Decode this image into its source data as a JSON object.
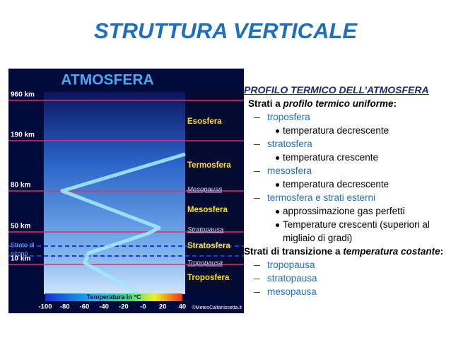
{
  "title": "STRUTTURA VERTICALE",
  "figure": {
    "title": "ATMOSFERA",
    "altitudes": [
      "960 km",
      "190 km",
      "80 km",
      "50 km",
      "10 km"
    ],
    "layers": [
      "Esosfera",
      "Termosfera",
      "Mesosfera",
      "Stratosfera",
      "Troposfera"
    ],
    "pauses": [
      "Mesopausa",
      "Stratopausa",
      "Tropopausa"
    ],
    "ozone": [
      "Strato di",
      "ozono"
    ],
    "scale_title": "Temperatura in °C",
    "scale_ticks": [
      "-100",
      "-80",
      "-60",
      "-40",
      "-20",
      "-0",
      "20",
      "40"
    ],
    "credit": "©MeteoCaltanissetta.it"
  },
  "text": {
    "heading": "PROFILO TERMICO DELL’ATMOSFERA",
    "uniform": [
      "Strati a ",
      "profilo termico uniforme",
      ":"
    ],
    "uniform_items": [
      {
        "name": "troposfera",
        "detail": [
          "temperatura decrescente"
        ]
      },
      {
        "name": "stratosfera",
        "detail": [
          "temperatura crescente"
        ]
      },
      {
        "name": "mesosfera",
        "detail": [
          "temperatura decrescente"
        ]
      },
      {
        "name": "termosfera e strati esterni",
        "detail": [
          "approssimazione gas perfetti",
          "Temperature crescenti (superiori al migliaio di gradi)"
        ]
      }
    ],
    "transition": [
      "Strati di transizione a ",
      "temperatura costante",
      ":"
    ],
    "transition_items": [
      "tropopausa",
      "stratopausa",
      "mesopausa"
    ]
  }
}
